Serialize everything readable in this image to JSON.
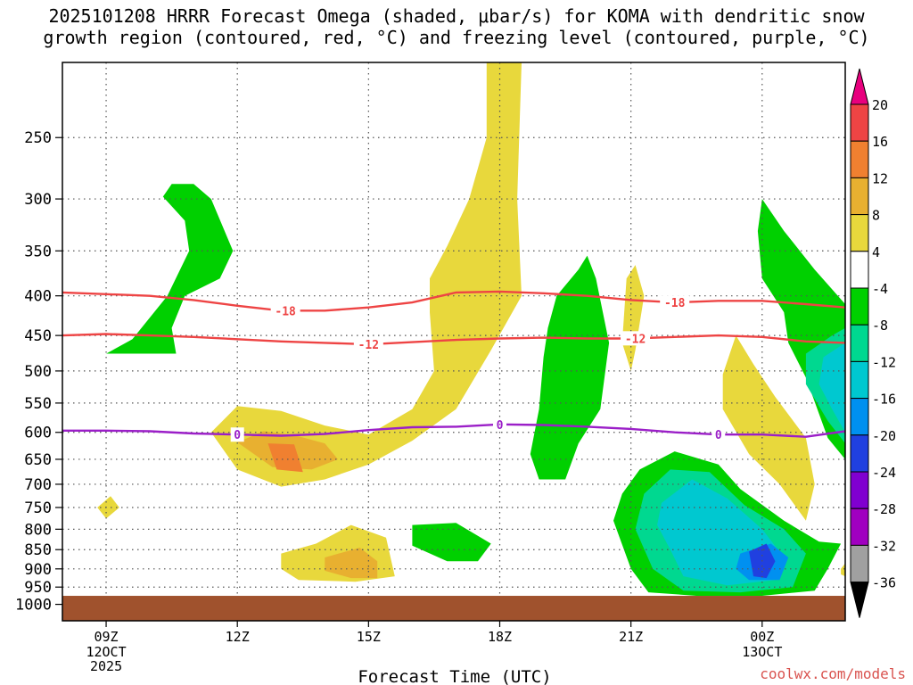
{
  "title": "2025101208 HRRR Forecast Omega (shaded, μbar/s) for KOMA with dendritic snow\ngrowth region (contoured, red, °C) and freezing level (contoured, purple, °C)",
  "credit": "coolwx.com/models",
  "colors": {
    "ground": "#a0522d",
    "red_contour": "#ee4444",
    "purple_contour": "#9b1fc8"
  },
  "chart_data": {
    "type": "heatmap",
    "title": "2025101208 HRRR Forecast Omega (shaded, μbar/s) for KOMA with dendritic snow growth region (contoured, red, °C) and freezing level (contoured, purple, °C)",
    "xlabel": "Forecast Time (UTC)",
    "ylabel": "",
    "xlim": [
      8,
      25.9
    ],
    "ylim_hPa": [
      1050,
      200
    ],
    "x_ticks": [
      {
        "x": 9,
        "label": "09Z",
        "sub": [
          "12OCT",
          "2025"
        ]
      },
      {
        "x": 12,
        "label": "12Z",
        "sub": []
      },
      {
        "x": 15,
        "label": "15Z",
        "sub": []
      },
      {
        "x": 18,
        "label": "18Z",
        "sub": []
      },
      {
        "x": 21,
        "label": "21Z",
        "sub": []
      },
      {
        "x": 24,
        "label": "00Z",
        "sub": [
          "13OCT"
        ]
      }
    ],
    "y_ticks": [
      250,
      300,
      350,
      400,
      450,
      500,
      550,
      600,
      650,
      700,
      750,
      800,
      850,
      900,
      950,
      1000
    ],
    "colorbar": {
      "labels": [
        "20",
        "16",
        "12",
        "8",
        "4",
        "-4",
        "-8",
        "-12",
        "-16",
        "-20",
        "-24",
        "-28",
        "-32",
        "-36"
      ],
      "bins": [
        {
          "range": [
            20,
            100
          ],
          "color": "#e8007e"
        },
        {
          "range": [
            16,
            20
          ],
          "color": "#ee4444"
        },
        {
          "range": [
            12,
            16
          ],
          "color": "#f08030"
        },
        {
          "range": [
            8,
            12
          ],
          "color": "#e8b030"
        },
        {
          "range": [
            4,
            8
          ],
          "color": "#e8d83c"
        },
        {
          "range": [
            -4,
            4
          ],
          "color": "#ffffff"
        },
        {
          "range": [
            -8,
            -4
          ],
          "color": "#00d000"
        },
        {
          "range": [
            -12,
            -8
          ],
          "color": "#00d890"
        },
        {
          "range": [
            -16,
            -12
          ],
          "color": "#00c8d0"
        },
        {
          "range": [
            -20,
            -16
          ],
          "color": "#0090f0"
        },
        {
          "range": [
            -24,
            -20
          ],
          "color": "#2040e0"
        },
        {
          "range": [
            -28,
            -24
          ],
          "color": "#8000d0"
        },
        {
          "range": [
            -32,
            -28
          ],
          "color": "#a000c0"
        },
        {
          "range": [
            -36,
            -32
          ],
          "color": "#a0a0a0"
        },
        {
          "range": [
            -100,
            -36
          ],
          "color": "#000000"
        }
      ]
    },
    "shaded_regions": [
      {
        "level": -8,
        "pts": [
          [
            9.0,
            475
          ],
          [
            9.6,
            455
          ],
          [
            10.4,
            400
          ],
          [
            10.9,
            350
          ],
          [
            10.8,
            320
          ],
          [
            10.3,
            298
          ],
          [
            10.5,
            287
          ],
          [
            11.0,
            287
          ],
          [
            11.4,
            300
          ],
          [
            11.9,
            350
          ],
          [
            11.6,
            380
          ],
          [
            10.8,
            400
          ],
          [
            10.5,
            440
          ],
          [
            10.6,
            475
          ]
        ]
      },
      {
        "level": 4,
        "pts": [
          [
            8.8,
            750
          ],
          [
            9.1,
            725
          ],
          [
            9.3,
            750
          ],
          [
            9.0,
            775
          ]
        ]
      },
      {
        "level": 4,
        "pts": [
          [
            11.4,
            600
          ],
          [
            12.0,
            555
          ],
          [
            13.0,
            563
          ],
          [
            14.0,
            588
          ],
          [
            15.0,
            604
          ],
          [
            16.0,
            560
          ],
          [
            16.5,
            500
          ],
          [
            16.4,
            420
          ],
          [
            16.4,
            380
          ],
          [
            16.8,
            345
          ],
          [
            17.3,
            300
          ],
          [
            17.7,
            250
          ],
          [
            17.7,
            200
          ],
          [
            18.5,
            200
          ],
          [
            18.4,
            300
          ],
          [
            18.5,
            400
          ],
          [
            17.8,
            470
          ],
          [
            17.0,
            560
          ],
          [
            16.0,
            615
          ],
          [
            15.0,
            660
          ],
          [
            14.0,
            690
          ],
          [
            13.0,
            705
          ],
          [
            12.0,
            670
          ]
        ]
      },
      {
        "level": 8,
        "pts": [
          [
            12.0,
            618
          ],
          [
            12.6,
            598
          ],
          [
            13.3,
            605
          ],
          [
            14.0,
            620
          ],
          [
            14.3,
            650
          ],
          [
            13.7,
            670
          ],
          [
            12.8,
            665
          ]
        ]
      },
      {
        "level": 12,
        "pts": [
          [
            12.7,
            620
          ],
          [
            13.3,
            622
          ],
          [
            13.5,
            675
          ],
          [
            12.9,
            670
          ]
        ]
      },
      {
        "level": 4,
        "pts": [
          [
            13.0,
            860
          ],
          [
            13.8,
            835
          ],
          [
            14.6,
            790
          ],
          [
            15.4,
            820
          ],
          [
            15.6,
            920
          ],
          [
            14.7,
            935
          ],
          [
            13.4,
            930
          ],
          [
            13.0,
            900
          ]
        ]
      },
      {
        "level": 8,
        "pts": [
          [
            14.0,
            870
          ],
          [
            14.8,
            845
          ],
          [
            15.2,
            880
          ],
          [
            15.2,
            925
          ],
          [
            14.6,
            925
          ],
          [
            14.0,
            905
          ]
        ]
      },
      {
        "level": -8,
        "pts": [
          [
            16.0,
            790
          ],
          [
            17.0,
            785
          ],
          [
            17.8,
            835
          ],
          [
            17.5,
            880
          ],
          [
            16.8,
            880
          ],
          [
            16.0,
            840
          ]
        ]
      },
      {
        "level": -8,
        "pts": [
          [
            19.1,
            440
          ],
          [
            19.3,
            400
          ],
          [
            19.8,
            370
          ],
          [
            20.0,
            355
          ],
          [
            20.2,
            380
          ],
          [
            20.5,
            460
          ],
          [
            20.3,
            560
          ],
          [
            19.8,
            620
          ],
          [
            19.5,
            690
          ],
          [
            18.9,
            690
          ],
          [
            18.7,
            640
          ],
          [
            18.9,
            560
          ],
          [
            19.0,
            480
          ]
        ]
      },
      {
        "level": 4,
        "pts": [
          [
            20.9,
            380
          ],
          [
            21.1,
            365
          ],
          [
            21.3,
            400
          ],
          [
            21.1,
            470
          ],
          [
            21.0,
            500
          ],
          [
            20.8,
            460
          ]
        ]
      },
      {
        "level": 4,
        "pts": [
          [
            23.1,
            505
          ],
          [
            23.4,
            450
          ],
          [
            23.8,
            490
          ],
          [
            24.3,
            540
          ],
          [
            25.0,
            610
          ],
          [
            25.2,
            700
          ],
          [
            25.0,
            780
          ],
          [
            24.4,
            700
          ],
          [
            23.7,
            640
          ],
          [
            23.1,
            560
          ]
        ]
      },
      {
        "level": -8,
        "pts": [
          [
            20.8,
            720
          ],
          [
            21.2,
            670
          ],
          [
            22.0,
            635
          ],
          [
            23.0,
            660
          ],
          [
            23.5,
            710
          ],
          [
            24.5,
            780
          ],
          [
            25.3,
            830
          ],
          [
            25.8,
            835
          ],
          [
            25.5,
            900
          ],
          [
            25.2,
            960
          ],
          [
            24.0,
            975
          ],
          [
            22.5,
            975
          ],
          [
            21.4,
            965
          ],
          [
            21.0,
            900
          ],
          [
            20.6,
            780
          ]
        ]
      },
      {
        "level": -12,
        "pts": [
          [
            21.3,
            720
          ],
          [
            21.9,
            670
          ],
          [
            22.8,
            675
          ],
          [
            23.6,
            745
          ],
          [
            24.5,
            800
          ],
          [
            25.0,
            860
          ],
          [
            24.7,
            950
          ],
          [
            23.5,
            965
          ],
          [
            22.2,
            960
          ],
          [
            21.5,
            900
          ],
          [
            21.1,
            800
          ]
        ]
      },
      {
        "level": -16,
        "pts": [
          [
            21.7,
            740
          ],
          [
            22.4,
            690
          ],
          [
            23.2,
            730
          ],
          [
            24.0,
            800
          ],
          [
            24.5,
            870
          ],
          [
            24.3,
            930
          ],
          [
            23.2,
            945
          ],
          [
            22.2,
            920
          ],
          [
            21.9,
            850
          ],
          [
            21.6,
            790
          ]
        ]
      },
      {
        "level": -20,
        "pts": [
          [
            23.5,
            860
          ],
          [
            24.2,
            835
          ],
          [
            24.6,
            870
          ],
          [
            24.4,
            930
          ],
          [
            23.7,
            930
          ],
          [
            23.4,
            900
          ]
        ]
      },
      {
        "level": -24,
        "pts": [
          [
            23.7,
            855
          ],
          [
            24.1,
            835
          ],
          [
            24.3,
            880
          ],
          [
            24.1,
            925
          ],
          [
            23.8,
            920
          ]
        ]
      },
      {
        "level": -8,
        "pts": [
          [
            23.9,
            330
          ],
          [
            24.0,
            300
          ],
          [
            24.5,
            330
          ],
          [
            25.2,
            370
          ],
          [
            25.9,
            410
          ],
          [
            25.9,
            650
          ],
          [
            25.5,
            610
          ],
          [
            25.0,
            510
          ],
          [
            24.6,
            460
          ],
          [
            24.5,
            420
          ],
          [
            24.0,
            380
          ]
        ]
      },
      {
        "level": -12,
        "pts": [
          [
            25.0,
            475
          ],
          [
            25.6,
            450
          ],
          [
            25.9,
            440
          ],
          [
            25.9,
            620
          ],
          [
            25.5,
            580
          ],
          [
            25.0,
            520
          ]
        ]
      },
      {
        "level": -16,
        "pts": [
          [
            25.4,
            480
          ],
          [
            25.9,
            460
          ],
          [
            25.9,
            600
          ],
          [
            25.6,
            560
          ],
          [
            25.3,
            520
          ]
        ]
      },
      {
        "level": 4,
        "pts": [
          [
            25.8,
            900
          ],
          [
            25.9,
            885
          ],
          [
            25.9,
            920
          ],
          [
            25.8,
            915
          ]
        ]
      }
    ],
    "contours": [
      {
        "name": "-18 dendritic",
        "label": "-18",
        "color": "red",
        "x": [
          8.0,
          9.0,
          10.0,
          11.0,
          12.0,
          13.0,
          14.0,
          15.0,
          16.0,
          17.0,
          18.0,
          19.0,
          20.0,
          21.0,
          22.0,
          23.0,
          24.0,
          25.0,
          25.9
        ],
        "p": [
          396,
          398,
          400,
          405,
          412,
          418,
          418,
          414,
          408,
          396,
          395,
          397,
          400,
          405,
          408,
          406,
          406,
          410,
          414
        ],
        "label_x": [
          13.1,
          22.0
        ]
      },
      {
        "name": "-12 dendritic",
        "label": "-12",
        "color": "red",
        "x": [
          8.0,
          9.0,
          10.0,
          11.0,
          12.0,
          13.0,
          14.0,
          15.0,
          16.0,
          17.0,
          18.0,
          19.0,
          20.0,
          21.0,
          22.0,
          23.0,
          24.0,
          25.0,
          25.9
        ],
        "p": [
          450,
          448,
          450,
          452,
          455,
          458,
          460,
          462,
          459,
          456,
          454,
          453,
          454,
          454,
          452,
          450,
          452,
          458,
          460
        ],
        "label_x": [
          15.0,
          21.1
        ]
      },
      {
        "name": "freezing level",
        "label": "0",
        "color": "purple",
        "x": [
          8.0,
          9.0,
          10.0,
          11.0,
          12.0,
          13.0,
          14.0,
          15.0,
          16.0,
          17.0,
          18.0,
          19.0,
          20.0,
          21.0,
          22.0,
          23.0,
          24.0,
          25.0,
          25.9
        ],
        "p": [
          597,
          597,
          598,
          602,
          604,
          606,
          603,
          596,
          591,
          590,
          586,
          587,
          590,
          594,
          600,
          604,
          604,
          608,
          598
        ],
        "label_x": [
          12.0,
          18.0,
          23.0
        ]
      }
    ],
    "ground": {
      "top_hPa": 975
    }
  }
}
